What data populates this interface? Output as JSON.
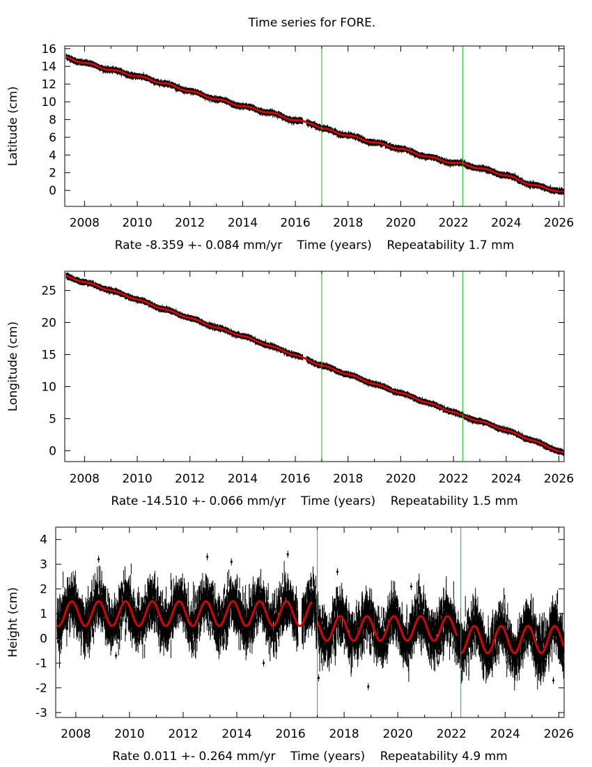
{
  "page": {
    "title": "Time series for FORE."
  },
  "chart_data": [
    {
      "type": "scatter",
      "ylabel": "Latitude (cm)",
      "xlabel": "Rate -8.359 +- 0.084 mm/yr    Time (years)    Repeatability 1.7 mm",
      "xlim": [
        2007.25,
        2026.2
      ],
      "ylim": [
        -1.8,
        16.3
      ],
      "xticks": [
        2008,
        2010,
        2012,
        2014,
        2016,
        2018,
        2020,
        2022,
        2024,
        2026
      ],
      "yticks": [
        0,
        2,
        4,
        6,
        8,
        10,
        12,
        14,
        16
      ],
      "vertical_lines": [
        2017.0,
        2022.35
      ],
      "vertical_line_color": "#00cc00",
      "data_color": "#000000",
      "model_color": "#dd0000",
      "series": [
        {
          "x": [
            2007.3,
            2008.0,
            2009.0,
            2010.0,
            2011.0,
            2012.0,
            2013.0,
            2014.0,
            2015.0,
            2016.0,
            2016.7,
            2017.0,
            2018.0,
            2019.0,
            2020.0,
            2021.0,
            2022.0,
            2022.35,
            2023.0,
            2024.0,
            2025.0,
            2026.2
          ],
          "y": [
            15.0,
            14.4,
            13.6,
            12.9,
            12.1,
            11.2,
            10.3,
            9.5,
            8.8,
            7.9,
            7.5,
            7.0,
            6.2,
            5.4,
            4.7,
            3.8,
            3.1,
            3.0,
            2.5,
            1.7,
            0.6,
            -0.2
          ]
        }
      ],
      "scatter": 0.2,
      "seasonal": 0.1
    },
    {
      "type": "scatter",
      "ylabel": "Longitude (cm)",
      "xlabel": "Rate -14.510 +- 0.066 mm/yr    Time (years)    Repeatability 1.5 mm",
      "xlim": [
        2007.25,
        2026.2
      ],
      "ylim": [
        -1.7,
        28.0
      ],
      "xticks": [
        2008,
        2010,
        2012,
        2014,
        2016,
        2018,
        2020,
        2022,
        2024,
        2026
      ],
      "yticks": [
        0,
        5,
        10,
        15,
        20,
        25
      ],
      "vertical_lines": [
        2017.0,
        2022.35
      ],
      "vertical_line_color": "#00cc00",
      "data_color": "#000000",
      "model_color": "#dd0000",
      "series": [
        {
          "x": [
            2007.3,
            2008.0,
            2009.0,
            2010.0,
            2011.0,
            2012.0,
            2013.0,
            2014.0,
            2015.0,
            2016.0,
            2017.0,
            2018.0,
            2019.0,
            2020.0,
            2021.0,
            2022.0,
            2022.35,
            2023.0,
            2024.0,
            2025.0,
            2026.2
          ],
          "y": [
            27.2,
            26.3,
            25.0,
            23.6,
            22.1,
            20.7,
            19.2,
            17.9,
            16.4,
            14.9,
            13.3,
            11.9,
            10.4,
            9.0,
            7.5,
            6.0,
            5.4,
            4.6,
            3.2,
            1.6,
            -0.4
          ]
        }
      ],
      "scatter": 0.25,
      "seasonal": 0.1
    },
    {
      "type": "scatter",
      "ylabel": "Height (cm)",
      "xlabel": "Rate 0.011 +- 0.264 mm/yr    Time (years)    Repeatability 4.9 mm",
      "xlim": [
        2007.25,
        2026.2
      ],
      "ylim": [
        -3.2,
        4.5
      ],
      "xticks": [
        2008,
        2010,
        2012,
        2014,
        2016,
        2018,
        2020,
        2022,
        2024,
        2026
      ],
      "yticks": [
        -3,
        -2,
        -1,
        0,
        1,
        2,
        3,
        4
      ],
      "vertical_lines": [
        2017.0,
        2022.35
      ],
      "vertical_line_color": "#00cc00",
      "data_color": "#000000",
      "model_color": "#dd0000",
      "segments": [
        {
          "x_start": 2007.3,
          "x_end": 2016.8,
          "offset": 1.0,
          "amplitude": 0.5,
          "phase": 0.35
        },
        {
          "x_start": 2017.0,
          "x_end": 2022.2,
          "offset": 0.4,
          "amplitude": 0.5,
          "phase": 0.35
        },
        {
          "x_start": 2022.35,
          "x_end": 2026.2,
          "offset": -0.05,
          "amplitude": 0.55,
          "phase": 0.35
        }
      ],
      "scatter": 0.75,
      "error_bar": 0.35,
      "outliers": [
        {
          "x": 2008.85,
          "y": 3.2
        },
        {
          "x": 2009.5,
          "y": -0.7
        },
        {
          "x": 2012.9,
          "y": 3.3
        },
        {
          "x": 2013.8,
          "y": 3.1
        },
        {
          "x": 2015.0,
          "y": -1.0
        },
        {
          "x": 2015.9,
          "y": 3.4
        },
        {
          "x": 2017.05,
          "y": -1.6
        },
        {
          "x": 2017.75,
          "y": 2.7
        },
        {
          "x": 2018.9,
          "y": -1.95
        },
        {
          "x": 2020.5,
          "y": 2.1
        },
        {
          "x": 2021.5,
          "y": -1.0
        },
        {
          "x": 2025.8,
          "y": -1.7
        }
      ]
    }
  ]
}
